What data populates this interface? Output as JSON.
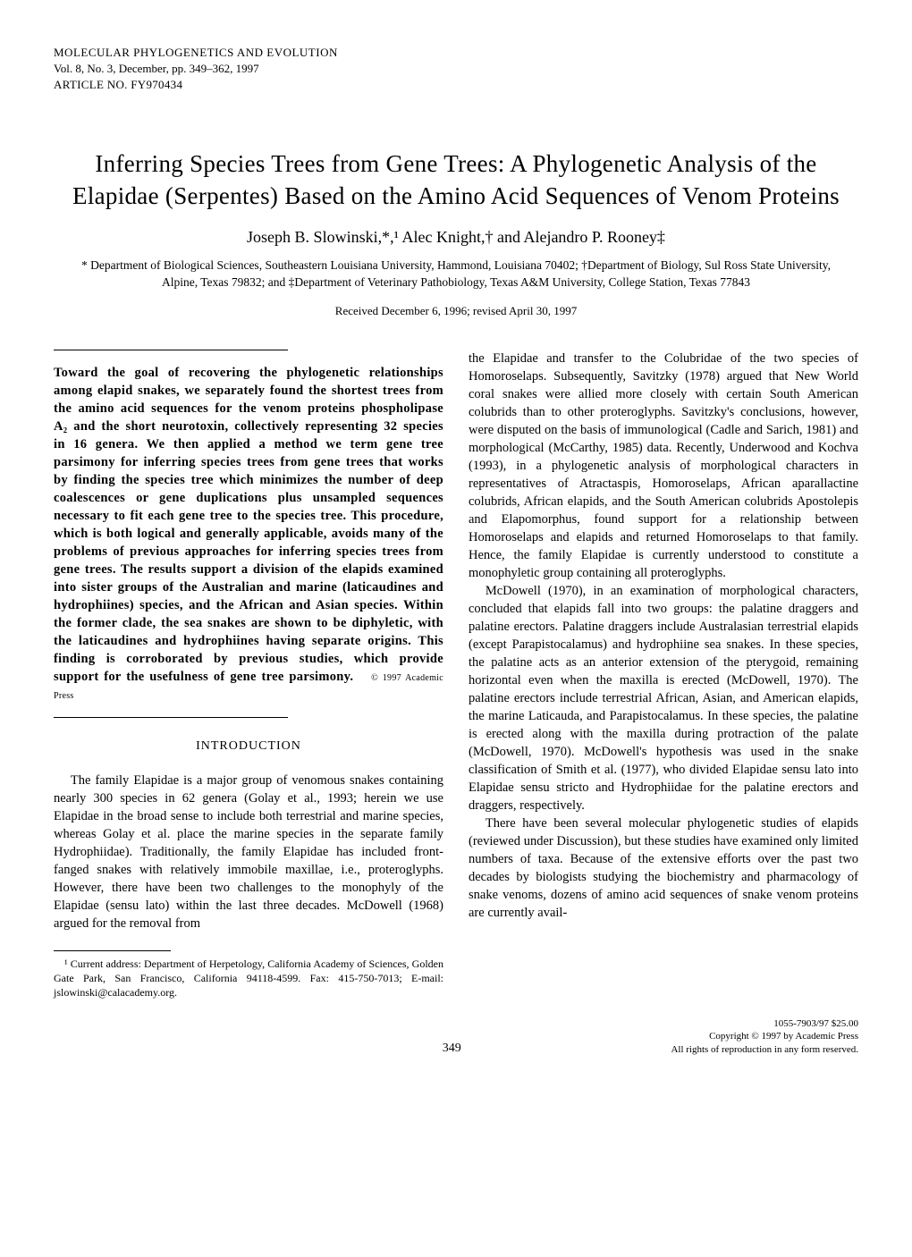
{
  "meta": {
    "journal": "MOLECULAR PHYLOGENETICS AND EVOLUTION",
    "volume": "Vol. 8, No. 3, December, pp. 349–362, 1997",
    "article_no": "ARTICLE NO. FY970434"
  },
  "title": "Inferring Species Trees from Gene Trees: A Phylogenetic Analysis of the Elapidae (Serpentes) Based on the Amino Acid Sequences of Venom Proteins",
  "authors": "Joseph B. Slowinski,*,¹ Alec Knight,† and Alejandro P. Rooney‡",
  "affiliations": "* Department of Biological Sciences, Southeastern Louisiana University, Hammond, Louisiana 70402; †Department of Biology, Sul Ross State University, Alpine, Texas 79832; and ‡Department of Veterinary Pathobiology, Texas A&M University, College Station, Texas 77843",
  "received": "Received December 6, 1996; revised April 30, 1997",
  "abstract": "Toward the goal of recovering the phylogenetic relationships among elapid snakes, we separately found the shortest trees from the amino acid sequences for the venom proteins phospholipase A₂ and the short neurotoxin, collectively representing 32 species in 16 genera. We then applied a method we term gene tree parsimony for inferring species trees from gene trees that works by finding the species tree which minimizes the number of deep coalescences or gene duplications plus unsampled sequences necessary to fit each gene tree to the species tree. This procedure, which is both logical and generally applicable, avoids many of the problems of previous approaches for inferring species trees from gene trees. The results support a division of the elapids examined into sister groups of the Australian and marine (laticaudines and hydrophiines) species, and the African and Asian species. Within the former clade, the sea snakes are shown to be diphyletic, with the laticaudines and hydrophiines having separate origins. This finding is corroborated by previous studies, which provide support for the usefulness of gene tree parsimony.",
  "abstract_copyright": "© 1997 Academic Press",
  "section_heading": "INTRODUCTION",
  "col1_p1": "The family Elapidae is a major group of venomous snakes containing nearly 300 species in 62 genera (Golay et al., 1993; herein we use Elapidae in the broad sense to include both terrestrial and marine species, whereas Golay et al. place the marine species in the separate family Hydrophiidae). Traditionally, the family Elapidae has included front-fanged snakes with relatively immobile maxillae, i.e., proteroglyphs. However, there have been two challenges to the monophyly of the Elapidae (sensu lato) within the last three decades. McDowell (1968) argued for the removal from",
  "footnote": "¹ Current address: Department of Herpetology, California Academy of Sciences, Golden Gate Park, San Francisco, California 94118-4599. Fax: 415-750-7013; E-mail: jslowinski@calacademy.org.",
  "col2_p1": "the Elapidae and transfer to the Colubridae of the two species of Homoroselaps. Subsequently, Savitzky (1978) argued that New World coral snakes were allied more closely with certain South American colubrids than to other proteroglyphs. Savitzky's conclusions, however, were disputed on the basis of immunological (Cadle and Sarich, 1981) and morphological (McCarthy, 1985) data. Recently, Underwood and Kochva (1993), in a phylogenetic analysis of morphological characters in representatives of Atractaspis, Homoroselaps, African aparallactine colubrids, African elapids, and the South American colubrids Apostolepis and Elapomorphus, found support for a relationship between Homoroselaps and elapids and returned Homoroselaps to that family. Hence, the family Elapidae is currently understood to constitute a monophyletic group containing all proteroglyphs.",
  "col2_p2": "McDowell (1970), in an examination of morphological characters, concluded that elapids fall into two groups: the palatine draggers and palatine erectors. Palatine draggers include Australasian terrestrial elapids (except Parapistocalamus) and hydrophiine sea snakes. In these species, the palatine acts as an anterior extension of the pterygoid, remaining horizontal even when the maxilla is erected (McDowell, 1970). The palatine erectors include terrestrial African, Asian, and American elapids, the marine Laticauda, and Parapistocalamus. In these species, the palatine is erected along with the maxilla during protraction of the palate (McDowell, 1970). McDowell's hypothesis was used in the snake classification of Smith et al. (1977), who divided Elapidae sensu lato into Elapidae sensu stricto and Hydrophiidae for the palatine erectors and draggers, respectively.",
  "col2_p3": "There have been several molecular phylogenetic studies of elapids (reviewed under Discussion), but these studies have examined only limited numbers of taxa. Because of the extensive efforts over the past two decades by biologists studying the biochemistry and pharmacology of snake venoms, dozens of amino acid sequences of snake venom proteins are currently avail-",
  "footer": {
    "page": "349",
    "issn": "1055-7903/97 $25.00",
    "copyright": "Copyright © 1997 by Academic Press",
    "rights": "All rights of reproduction in any form reserved."
  }
}
